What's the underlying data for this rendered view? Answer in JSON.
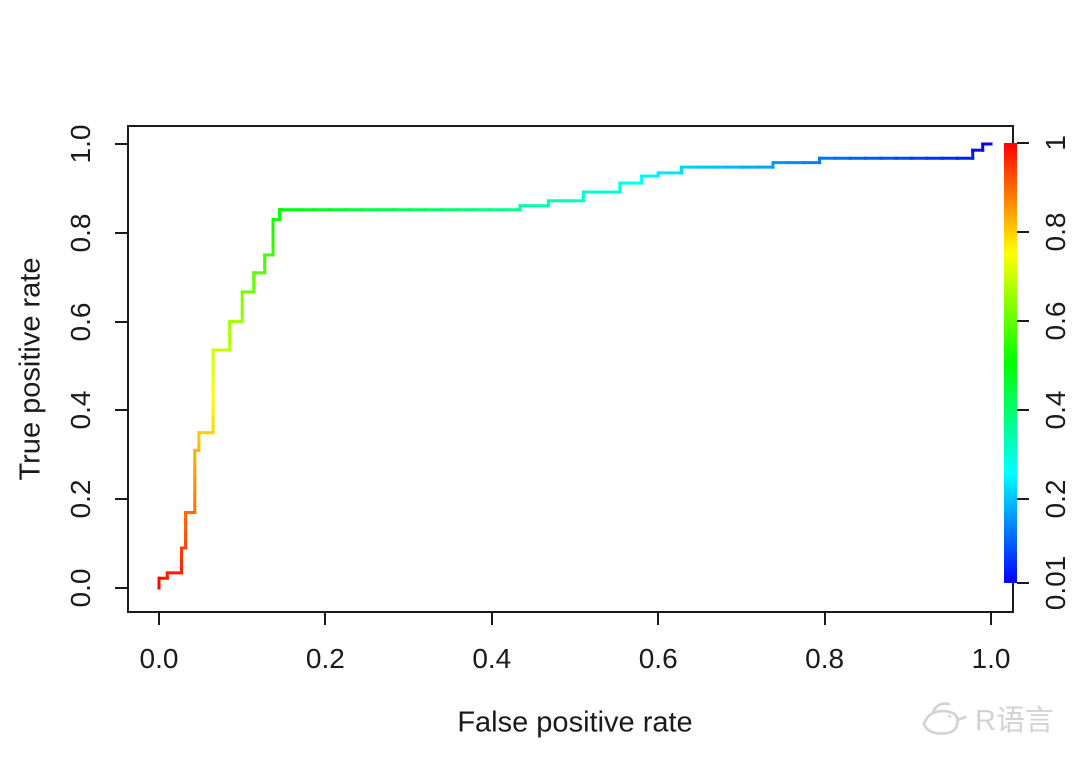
{
  "figure": {
    "background": "#ffffff",
    "axis_color": "#1a1a1a",
    "text_color": "#1a1a1a",
    "watermark": {
      "text": "R语言",
      "color": "#d2d2d2",
      "icon": "bird-logo"
    }
  },
  "chart_data": {
    "type": "line",
    "subtype": "ROC staircase curve colorized by cutoff value",
    "title": "",
    "xlabel": "False positive rate",
    "ylabel": "True positive rate",
    "xlim": [
      0,
      1
    ],
    "ylim": [
      0,
      1
    ],
    "grid": false,
    "legend_position": "none",
    "x_axis": {
      "tick_values": [
        0,
        0.2,
        0.4,
        0.6,
        0.8,
        1
      ],
      "tick_labels": [
        "0.0",
        "0.2",
        "0.4",
        "0.6",
        "0.8",
        "1.0"
      ]
    },
    "y_axis": {
      "tick_values": [
        0,
        0.2,
        0.4,
        0.6,
        0.8,
        1
      ],
      "tick_labels": [
        "0.0",
        "0.2",
        "0.4",
        "0.6",
        "0.8",
        "1.0"
      ]
    },
    "colorbar": {
      "position": "right",
      "meaning": "cutoff",
      "value_max": 1,
      "value_min": 0.01,
      "tick_values": [
        1,
        0.8,
        0.6,
        0.4,
        0.2,
        0.01
      ],
      "tick_labels": [
        "1",
        "0.8",
        "0.6",
        "0.4",
        "0.2",
        "0.01"
      ],
      "gradient_top_to_bottom": [
        "#ff0000",
        "#ffff00",
        "#00ff00",
        "#00ffff",
        "#0000ff"
      ]
    },
    "line_width": 3,
    "color_mapping": "hue interpolates 0 (red, high cutoff) to 240 (blue, low cutoff) along the curve",
    "roc_points": [
      [
        0.0,
        0.0
      ],
      [
        0.0,
        0.022
      ],
      [
        0.01,
        0.022
      ],
      [
        0.01,
        0.034
      ],
      [
        0.027,
        0.034
      ],
      [
        0.027,
        0.09
      ],
      [
        0.032,
        0.09
      ],
      [
        0.032,
        0.17
      ],
      [
        0.043,
        0.17
      ],
      [
        0.043,
        0.31
      ],
      [
        0.048,
        0.31
      ],
      [
        0.048,
        0.35
      ],
      [
        0.065,
        0.35
      ],
      [
        0.065,
        0.536
      ],
      [
        0.085,
        0.536
      ],
      [
        0.085,
        0.6
      ],
      [
        0.1,
        0.6
      ],
      [
        0.1,
        0.667
      ],
      [
        0.114,
        0.667
      ],
      [
        0.114,
        0.71
      ],
      [
        0.127,
        0.71
      ],
      [
        0.127,
        0.75
      ],
      [
        0.137,
        0.75
      ],
      [
        0.137,
        0.83
      ],
      [
        0.145,
        0.83
      ],
      [
        0.145,
        0.852
      ],
      [
        0.149,
        0.852
      ],
      [
        0.434,
        0.852
      ],
      [
        0.434,
        0.861
      ],
      [
        0.468,
        0.861
      ],
      [
        0.468,
        0.872
      ],
      [
        0.51,
        0.872
      ],
      [
        0.51,
        0.892
      ],
      [
        0.554,
        0.892
      ],
      [
        0.554,
        0.912
      ],
      [
        0.58,
        0.912
      ],
      [
        0.58,
        0.928
      ],
      [
        0.6,
        0.928
      ],
      [
        0.6,
        0.935
      ],
      [
        0.628,
        0.935
      ],
      [
        0.628,
        0.948
      ],
      [
        0.738,
        0.948
      ],
      [
        0.738,
        0.958
      ],
      [
        0.794,
        0.958
      ],
      [
        0.794,
        0.968
      ],
      [
        0.978,
        0.968
      ],
      [
        0.978,
        0.986
      ],
      [
        0.99,
        0.986
      ],
      [
        0.99,
        1.0
      ],
      [
        1.0,
        1.0
      ]
    ]
  }
}
